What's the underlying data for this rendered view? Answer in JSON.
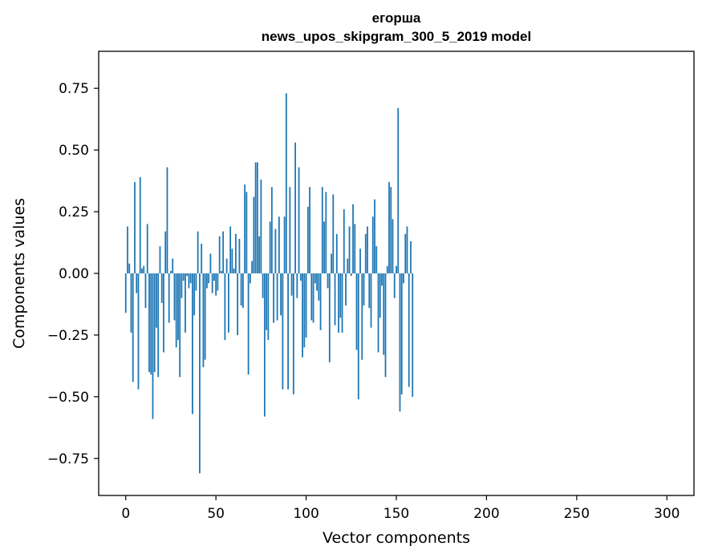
{
  "chart_data": {
    "type": "bar",
    "title_line1": "егорша",
    "title_line2": "news_upos_skipgram_300_5_2019 model",
    "xlabel": "Vector components",
    "ylabel": "Components values",
    "xlim": [
      -15,
      315
    ],
    "ylim": [
      -0.9,
      0.9
    ],
    "xticks": [
      0,
      50,
      100,
      150,
      200,
      250,
      300
    ],
    "xtick_labels": [
      "0",
      "50",
      "100",
      "150",
      "200",
      "250",
      "300"
    ],
    "yticks": [
      -0.75,
      -0.5,
      -0.25,
      0.0,
      0.25,
      0.5,
      0.75
    ],
    "ytick_labels": [
      "−0.75",
      "−0.50",
      "−0.25",
      "0.00",
      "0.25",
      "0.50",
      "0.75"
    ],
    "bar_color": "#1f77b4",
    "values": [
      -0.16,
      0.19,
      0.04,
      -0.24,
      -0.44,
      0.37,
      -0.08,
      -0.47,
      0.39,
      0.02,
      0.03,
      -0.14,
      0.2,
      -0.4,
      -0.41,
      -0.59,
      -0.4,
      -0.22,
      -0.42,
      0.11,
      -0.12,
      -0.32,
      0.17,
      0.43,
      -0.2,
      0.01,
      0.06,
      -0.19,
      -0.3,
      -0.27,
      -0.42,
      -0.1,
      -0.03,
      -0.24,
      -0.01,
      -0.06,
      -0.04,
      -0.57,
      -0.17,
      -0.07,
      0.17,
      -0.81,
      0.12,
      -0.38,
      -0.35,
      -0.06,
      -0.04,
      0.08,
      -0.08,
      -0.03,
      -0.09,
      -0.07,
      0.15,
      0.01,
      0.17,
      -0.27,
      0.06,
      -0.24,
      0.19,
      0.1,
      0.02,
      0.16,
      -0.25,
      0.14,
      -0.13,
      -0.14,
      0.36,
      0.33,
      -0.41,
      -0.04,
      0.05,
      0.31,
      0.45,
      0.45,
      0.15,
      0.38,
      -0.1,
      -0.58,
      -0.23,
      -0.27,
      0.21,
      0.35,
      -0.2,
      0.18,
      -0.19,
      0.23,
      -0.17,
      -0.47,
      0.23,
      0.73,
      -0.47,
      0.35,
      -0.09,
      -0.49,
      0.53,
      -0.1,
      0.43,
      -0.03,
      -0.34,
      -0.3,
      -0.26,
      0.27,
      0.35,
      -0.19,
      -0.2,
      -0.04,
      -0.07,
      -0.11,
      -0.23,
      0.35,
      0.21,
      0.33,
      -0.06,
      -0.36,
      0.08,
      0.32,
      -0.21,
      0.16,
      -0.24,
      -0.18,
      -0.24,
      0.26,
      -0.13,
      0.06,
      0.19,
      -0.01,
      0.28,
      0.2,
      -0.31,
      -0.51,
      0.1,
      -0.35,
      -0.13,
      0.16,
      0.19,
      -0.14,
      -0.22,
      0.23,
      0.3,
      0.11,
      -0.32,
      -0.18,
      -0.05,
      -0.33,
      -0.42,
      0.03,
      0.37,
      0.35,
      0.22,
      -0.1,
      0.03,
      0.67,
      -0.56,
      -0.49,
      -0.04,
      0.16,
      0.19,
      -0.46,
      0.13,
      -0.5
    ]
  }
}
